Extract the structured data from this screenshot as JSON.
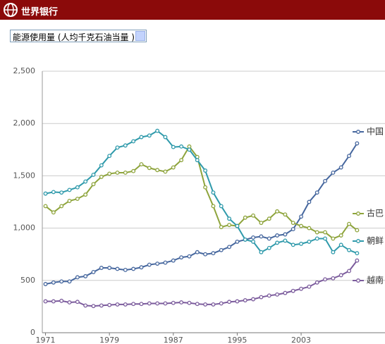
{
  "header": {
    "title": "世界银行"
  },
  "selector": {
    "label": "能源使用量 (人均千克石油当量 )"
  },
  "chart_data": {
    "type": "line",
    "x": [
      1971,
      1972,
      1973,
      1974,
      1975,
      1976,
      1977,
      1978,
      1979,
      1980,
      1981,
      1982,
      1983,
      1984,
      1985,
      1986,
      1987,
      1988,
      1989,
      1990,
      1991,
      1992,
      1993,
      1994,
      1995,
      1996,
      1997,
      1998,
      1999,
      2000,
      2001,
      2002,
      2003,
      2004,
      2005,
      2006,
      2007,
      2008,
      2009,
      2010
    ],
    "xlim": [
      1970.6,
      2013.5
    ],
    "xticks": [
      1971,
      1979,
      1987,
      1995,
      2003
    ],
    "ylim": [
      0,
      2500
    ],
    "yticks": [
      0,
      500,
      {
        "value": 1000,
        "label": "1,000"
      },
      {
        "value": 1500,
        "label": "1,500"
      },
      {
        "value": 2000,
        "label": "2,000"
      },
      {
        "value": 2500,
        "label": "2,500"
      }
    ],
    "grid": true,
    "series": [
      {
        "name": "中国",
        "color": "#46679e",
        "values": [
          465,
          480,
          490,
          490,
          530,
          540,
          580,
          620,
          620,
          610,
          600,
          610,
          625,
          650,
          660,
          670,
          690,
          720,
          730,
          770,
          750,
          760,
          790,
          820,
          870,
          890,
          910,
          920,
          900,
          930,
          940,
          990,
          1110,
          1250,
          1340,
          1450,
          1530,
          1580,
          1690,
          1810
        ]
      },
      {
        "name": "古巴",
        "color": "#8ea43c",
        "values": [
          1210,
          1150,
          1210,
          1260,
          1280,
          1320,
          1420,
          1490,
          1520,
          1530,
          1530,
          1545,
          1610,
          1575,
          1555,
          1540,
          1580,
          1650,
          1780,
          1680,
          1390,
          1210,
          1010,
          1030,
          1020,
          1100,
          1120,
          1050,
          1090,
          1160,
          1130,
          1050,
          1020,
          1000,
          960,
          960,
          900,
          930,
          1040,
          980
        ]
      },
      {
        "name": "朝鲜",
        "color": "#2f9aab",
        "values": [
          1330,
          1345,
          1340,
          1365,
          1390,
          1445,
          1510,
          1600,
          1690,
          1770,
          1790,
          1830,
          1870,
          1885,
          1930,
          1870,
          1775,
          1780,
          1750,
          1650,
          1550,
          1340,
          1210,
          1090,
          1020,
          890,
          870,
          770,
          810,
          860,
          880,
          840,
          850,
          870,
          900,
          900,
          770,
          840,
          790,
          760
        ]
      },
      {
        "name": "越南",
        "color": "#7b5b9c",
        "values": [
          300,
          300,
          305,
          290,
          295,
          260,
          255,
          260,
          265,
          270,
          270,
          275,
          275,
          280,
          280,
          280,
          285,
          290,
          285,
          275,
          270,
          270,
          280,
          295,
          300,
          310,
          320,
          340,
          355,
          365,
          380,
          400,
          420,
          440,
          480,
          510,
          520,
          550,
          590,
          690
        ]
      }
    ]
  }
}
